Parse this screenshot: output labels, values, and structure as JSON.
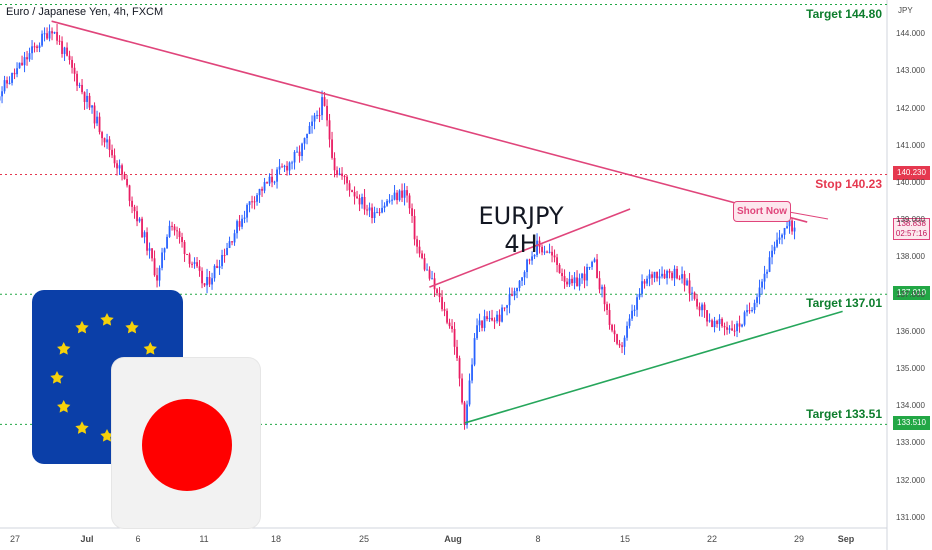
{
  "header": {
    "pair_title": "Euro / Japanese Yen, 4h, FXCM",
    "currency": "JPY"
  },
  "title": {
    "line1": "EURJPY",
    "line2": "4H"
  },
  "callout": {
    "text": "Short Now"
  },
  "levels": [
    {
      "name": "target-144",
      "label": "Target 144.80",
      "price": 144.8,
      "tag": "",
      "color": "#0c7d2c",
      "line": "#22a745"
    },
    {
      "name": "stop",
      "label": "Stop 140.23",
      "price": 140.23,
      "tag": "140.230",
      "color": "#e5384f",
      "line": "#e5384f"
    },
    {
      "name": "target-137",
      "label": "Target 137.01",
      "price": 137.01,
      "tag": "137.010",
      "color": "#0c7d2c",
      "line": "#22a745"
    },
    {
      "name": "target-133",
      "label": "Target 133.51",
      "price": 133.51,
      "tag": "133.510",
      "color": "#0c7d2c",
      "line": "#22a745"
    }
  ],
  "current_price": {
    "value": "138.838",
    "countdown": "02:57:16"
  },
  "colors": {
    "up": "#2962ff",
    "down": "#e91e63",
    "resistance": "#e0457b",
    "support": "#26a65b"
  },
  "flags": {
    "eu": "flag-eu",
    "jp": "flag-jp"
  },
  "chart_data": {
    "type": "candlestick",
    "timeframe": "4h",
    "ylim": [
      130.8,
      144.9
    ],
    "yticks": [
      144.0,
      143.0,
      142.0,
      141.0,
      140.0,
      139.0,
      138.0,
      137.0,
      136.0,
      135.0,
      134.0,
      133.0,
      132.0,
      131.0
    ],
    "xticks": [
      "27",
      "Jul",
      "6",
      "11",
      "18",
      "25",
      "Aug",
      "8",
      "15",
      "22",
      "29",
      "Sep"
    ],
    "path_points": [
      {
        "date": "Jun 23",
        "price": 142.2
      },
      {
        "date": "Jun 27",
        "price": 143.8
      },
      {
        "date": "Jun 28",
        "price": 144.2
      },
      {
        "date": "Jul 1",
        "price": 142.2
      },
      {
        "date": "Jul 4",
        "price": 140.2
      },
      {
        "date": "Jul 6",
        "price": 138.4
      },
      {
        "date": "Jul 7",
        "price": 137.4
      },
      {
        "date": "Jul 8",
        "price": 139.0
      },
      {
        "date": "Jul 11",
        "price": 137.2
      },
      {
        "date": "Jul 13",
        "price": 138.4
      },
      {
        "date": "Jul 15",
        "price": 139.6
      },
      {
        "date": "Jul 19",
        "price": 140.8
      },
      {
        "date": "Jul 21",
        "price": 142.2
      },
      {
        "date": "Jul 22",
        "price": 140.4
      },
      {
        "date": "Jul 25",
        "price": 139.2
      },
      {
        "date": "Jul 28",
        "price": 139.8
      },
      {
        "date": "Jul 29",
        "price": 138.2
      },
      {
        "date": "Aug 1",
        "price": 136.0
      },
      {
        "date": "Aug 2",
        "price": 133.6
      },
      {
        "date": "Aug 3",
        "price": 136.2
      },
      {
        "date": "Aug 5",
        "price": 136.4
      },
      {
        "date": "Aug 8",
        "price": 138.3
      },
      {
        "date": "Aug 9",
        "price": 138.2
      },
      {
        "date": "Aug 11",
        "price": 137.2
      },
      {
        "date": "Aug 13",
        "price": 137.8
      },
      {
        "date": "Aug 15",
        "price": 135.4
      },
      {
        "date": "Aug 17",
        "price": 137.2
      },
      {
        "date": "Aug 18",
        "price": 137.6
      },
      {
        "date": "Aug 20",
        "price": 137.6
      },
      {
        "date": "Aug 23",
        "price": 136.2
      },
      {
        "date": "Aug 25",
        "price": 136.1
      },
      {
        "date": "Aug 26",
        "price": 136.5
      },
      {
        "date": "Aug 29",
        "price": 138.8
      },
      {
        "date": "Aug 30",
        "price": 138.84
      }
    ],
    "trendlines": [
      {
        "name": "resistance",
        "from": {
          "date": "Jun 28",
          "price": 144.35
        },
        "to": {
          "date": "Aug 31",
          "price": 138.95
        }
      },
      {
        "name": "channel-upper",
        "from": {
          "date": "Jul 30",
          "price": 137.2
        },
        "to": {
          "date": "Aug 16",
          "price": 139.3
        }
      },
      {
        "name": "support",
        "from": {
          "date": "Aug 2",
          "price": 133.55
        },
        "to": {
          "date": "Sep 3",
          "price": 136.55
        }
      }
    ]
  }
}
